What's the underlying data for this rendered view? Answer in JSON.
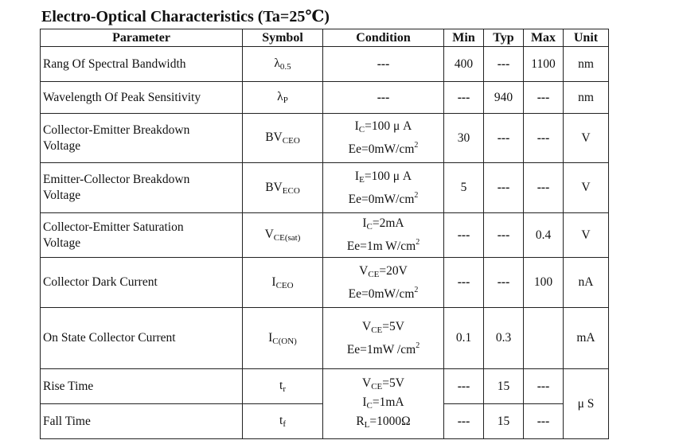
{
  "title": "Electro-Optical Characteristics (Ta=25℃)",
  "headers": [
    "Parameter",
    "Symbol",
    "Condition",
    "Min",
    "Typ",
    "Max",
    "Unit"
  ],
  "rows": [
    {
      "param": "Rang Of Spectral Bandwidth",
      "sym_main": "λ",
      "sym_sub": "0.5",
      "cond": "---",
      "min": "400",
      "typ": "---",
      "max": "1100",
      "unit": "nm"
    },
    {
      "param": "Wavelength Of Peak Sensitivity",
      "sym_main": "λ",
      "sym_sub": "P",
      "cond": "---",
      "min": "---",
      "typ": "940",
      "max": "---",
      "unit": "nm"
    },
    {
      "param_l1": "Collector-Emitter Breakdown",
      "param_l2": "Voltage",
      "sym_main": "BV",
      "sym_sub": "CEO",
      "cond_l1_main": "I",
      "cond_l1_sub": "C",
      "cond_l1_rest": "=100 μ A",
      "cond_l2_main": "Ee=0mW/cm",
      "cond_l2_sup": "2",
      "min": "30",
      "typ": "---",
      "max": "---",
      "unit": "V"
    },
    {
      "param_l1": "Emitter-Collector Breakdown",
      "param_l2": "Voltage",
      "sym_main": "BV",
      "sym_sub": "ECO",
      "cond_l1_main": "I",
      "cond_l1_sub": "E",
      "cond_l1_rest": "=100 μ A",
      "cond_l2_main": "Ee=0mW/cm",
      "cond_l2_sup": "2",
      "min": "5",
      "typ": "---",
      "max": "---",
      "unit": "V"
    },
    {
      "param_l1": "Collector-Emitter Saturation",
      "param_l2": "Voltage",
      "sym_main": "V",
      "sym_sub": "CE(sat)",
      "cond_l1_main": "I",
      "cond_l1_sub": "C",
      "cond_l1_rest": "=2mA",
      "cond_l2_main": "Ee=1m W/cm",
      "cond_l2_sup": "2",
      "min": "---",
      "typ": "---",
      "max": "0.4",
      "unit": "V"
    },
    {
      "param": "Collector Dark Current",
      "sym_main": "I",
      "sym_sub": "CEO",
      "cond_l1_main": "V",
      "cond_l1_sub": "CE",
      "cond_l1_rest": "=20V",
      "cond_l2_main": "Ee=0mW/cm",
      "cond_l2_sup": "2",
      "min": "---",
      "typ": "---",
      "max": "100",
      "unit": "nA"
    },
    {
      "param": "On State Collector Current",
      "sym_main": "I",
      "sym_sub": "C(ON)",
      "cond_l1_main": "V",
      "cond_l1_sub": "CE",
      "cond_l1_rest": "=5V",
      "cond_l2_main": "Ee=1mW /cm",
      "cond_l2_sup": "2",
      "min": "0.1",
      "typ": "0.3",
      "max": "",
      "unit": "mA"
    },
    {
      "param": "Rise Time",
      "sym_main": "t",
      "sym_sub": "r",
      "min": "---",
      "typ": "15",
      "max": "---"
    },
    {
      "param": "Fall Time",
      "sym_main": "t",
      "sym_sub": "f",
      "min": "---",
      "typ": "15",
      "max": "---"
    }
  ],
  "shared_time": {
    "cond_l1_main": "V",
    "cond_l1_sub": "CE",
    "cond_l1_rest": "=5V",
    "cond_l2_main": "I",
    "cond_l2_sub": "C",
    "cond_l2_rest": "=1mA",
    "cond_l3_main": "R",
    "cond_l3_sub": "L",
    "cond_l3_rest": "=1000Ω",
    "unit": "μ S"
  }
}
